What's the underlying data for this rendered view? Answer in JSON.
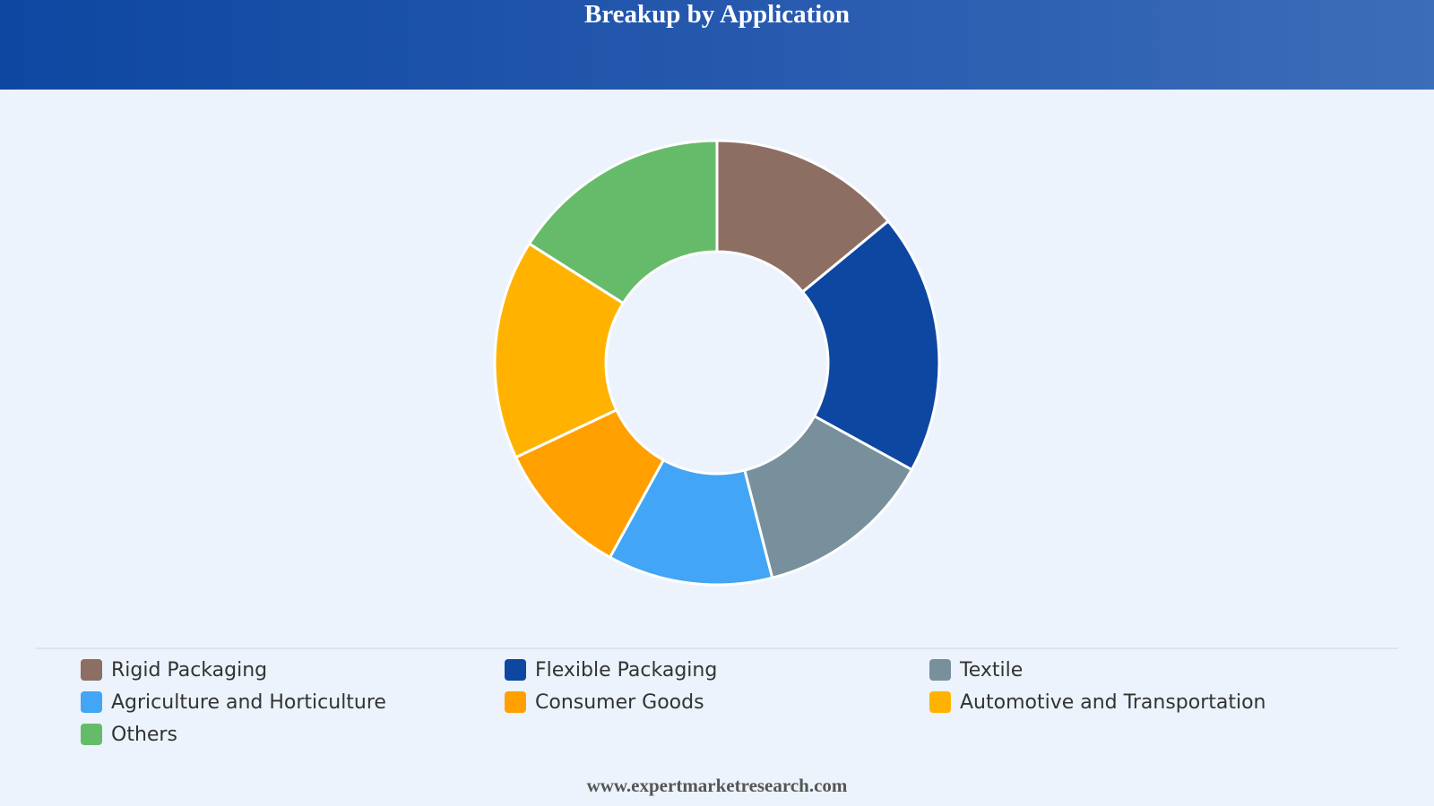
{
  "chart_data": {
    "type": "donut",
    "title": "Breakup by Application",
    "categories": [
      "Rigid Packaging",
      "Flexible Packaging",
      "Textile",
      "Agriculture and Horticulture",
      "Consumer Goods",
      "Automotive and Transportation",
      "Others"
    ],
    "values": [
      14,
      19,
      13,
      12,
      10,
      16,
      16
    ],
    "colors": [
      "#8d6e63",
      "#0d47a1",
      "#78909c",
      "#42a5f5",
      "#ffa000",
      "#ffb300",
      "#66bb6a"
    ],
    "legend": "bottom"
  },
  "footer": "www.expertmarketresearch.com"
}
